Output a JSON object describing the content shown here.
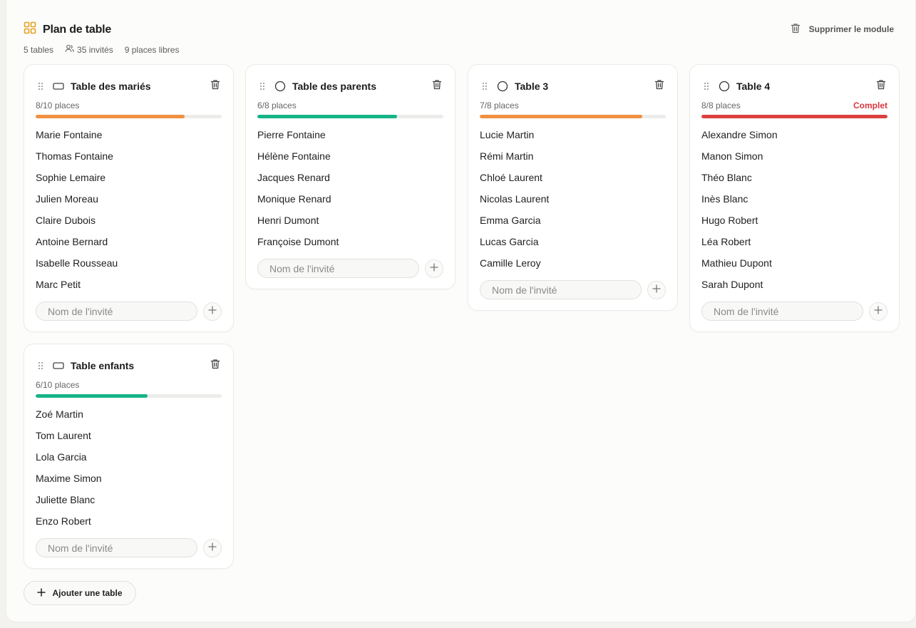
{
  "module": {
    "title": "Plan de table",
    "delete_label": "Supprimer le module",
    "icon": "grid-icon",
    "accent": "#e8a020"
  },
  "stats": {
    "tables": "5 tables",
    "guests": "35 invités",
    "free": "9 places libres"
  },
  "input_placeholder": "Nom de l'invité",
  "add_table_label": "Ajouter une table",
  "colors": {
    "orange": "#f09040",
    "green": "#16b488",
    "red": "#dc4040"
  },
  "tables": [
    {
      "name": "Table des mariés",
      "shape": "rectangle-icon",
      "capacity": "8/10 places",
      "fill_fraction": 0.8,
      "fill_color": "#f09040",
      "status": "",
      "guests": [
        "Marie Fontaine",
        "Thomas Fontaine",
        "Sophie Lemaire",
        "Julien Moreau",
        "Claire Dubois",
        "Antoine Bernard",
        "Isabelle Rousseau",
        "Marc Petit"
      ]
    },
    {
      "name": "Table des parents",
      "shape": "circle-icon",
      "capacity": "6/8 places",
      "fill_fraction": 0.75,
      "fill_color": "#16b488",
      "status": "",
      "guests": [
        "Pierre Fontaine",
        "Hélène Fontaine",
        "Jacques Renard",
        "Monique Renard",
        "Henri Dumont",
        "Françoise Dumont"
      ]
    },
    {
      "name": "Table 3",
      "shape": "circle-icon",
      "capacity": "7/8 places",
      "fill_fraction": 0.875,
      "fill_color": "#f09040",
      "status": "",
      "guests": [
        "Lucie Martin",
        "Rémi Martin",
        "Chloé Laurent",
        "Nicolas Laurent",
        "Emma Garcia",
        "Lucas Garcia",
        "Camille Leroy"
      ]
    },
    {
      "name": "Table 4",
      "shape": "circle-icon",
      "capacity": "8/8 places",
      "fill_fraction": 1.0,
      "fill_color": "#dc4040",
      "status": "Complet",
      "guests": [
        "Alexandre Simon",
        "Manon Simon",
        "Théo Blanc",
        "Inès Blanc",
        "Hugo Robert",
        "Léa Robert",
        "Mathieu Dupont",
        "Sarah Dupont"
      ]
    },
    {
      "name": "Table enfants",
      "shape": "rectangle-icon",
      "capacity": "6/10 places",
      "fill_fraction": 0.6,
      "fill_color": "#16b488",
      "status": "",
      "guests": [
        "Zoé Martin",
        "Tom Laurent",
        "Lola Garcia",
        "Maxime Simon",
        "Juliette Blanc",
        "Enzo Robert"
      ]
    }
  ]
}
